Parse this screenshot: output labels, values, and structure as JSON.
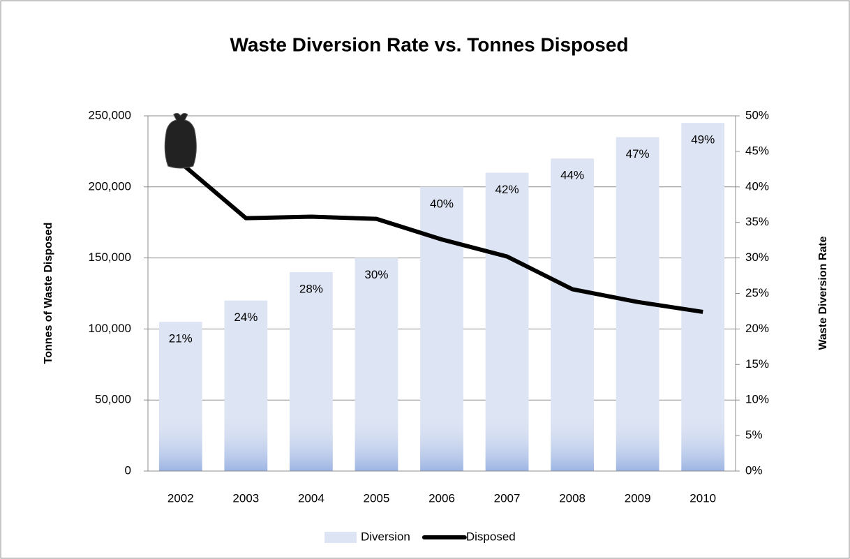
{
  "chart_data": {
    "type": "combo",
    "title": "Waste Diversion Rate vs. Tonnes Disposed",
    "y_label": "Tonnes of Waste Disposed",
    "y2_label": "Waste Diversion Rate",
    "categories": [
      "2002",
      "2003",
      "2004",
      "2005",
      "2006",
      "2007",
      "2008",
      "2009",
      "2010"
    ],
    "series": [
      {
        "name": "Diversion",
        "type": "bar",
        "axis": "y2",
        "color": "#dde4f3",
        "values": [
          21,
          24,
          28,
          30,
          40,
          42,
          44,
          47,
          49
        ],
        "value_labels": [
          "21%",
          "24%",
          "28%",
          "30%",
          "40%",
          "42%",
          "44%",
          "47%",
          "49%"
        ]
      },
      {
        "name": "Disposed",
        "type": "line",
        "color": "#000000",
        "values": [
          217000,
          178000,
          179000,
          177500,
          163000,
          151000,
          128000,
          119000,
          112000
        ]
      }
    ],
    "ylim": [
      0,
      250000
    ],
    "yticks": [
      0,
      {
        "value": 50000,
        "label": "50,000"
      },
      {
        "value": 100000,
        "label": "100,000"
      },
      {
        "value": 150000,
        "label": "150,000"
      },
      {
        "value": 200000,
        "label": "200,000"
      },
      {
        "value": 250000,
        "label": "250,000"
      }
    ],
    "y2lim": [
      0,
      50
    ],
    "y2ticks": [
      {
        "value": 0,
        "label": "0%"
      },
      {
        "value": 5,
        "label": "5%"
      },
      {
        "value": 10,
        "label": "10%"
      },
      {
        "value": 15,
        "label": "15%"
      },
      {
        "value": 20,
        "label": "20%"
      },
      {
        "value": 25,
        "label": "25%"
      },
      {
        "value": 30,
        "label": "30%"
      },
      {
        "value": 35,
        "label": "35%"
      },
      {
        "value": 40,
        "label": "40%"
      },
      {
        "value": 45,
        "label": "45%"
      },
      {
        "value": 50,
        "label": "50%"
      }
    ],
    "grid": true,
    "legend": "bottom"
  }
}
